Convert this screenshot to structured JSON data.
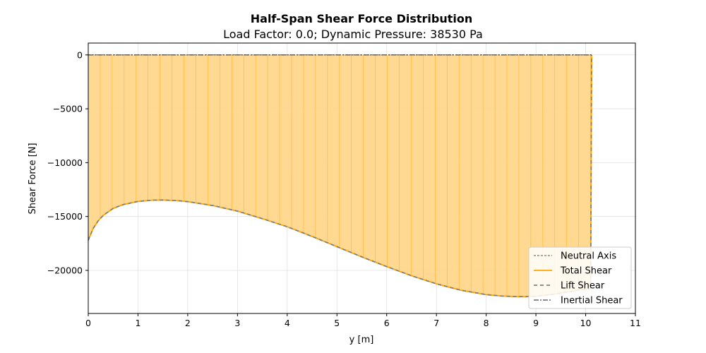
{
  "chart_data": {
    "type": "area",
    "title": "Half-Span Shear Force Distribution",
    "subtitle": "Load Factor: 0.0; Dynamic Pressure: 38530 Pa",
    "xlabel": "y [m]",
    "ylabel": "Shear Force [N]",
    "xlim": [
      0,
      11
    ],
    "ylim": [
      -24000,
      1100
    ],
    "xticks": [
      0,
      1,
      2,
      3,
      4,
      5,
      6,
      7,
      8,
      9,
      10,
      11
    ],
    "xtick_labels": [
      "0",
      "1",
      "2",
      "3",
      "4",
      "5",
      "6",
      "7",
      "8",
      "9",
      "10",
      "11"
    ],
    "yticks": [
      0,
      -5000,
      -10000,
      -15000,
      -20000
    ],
    "ytick_labels": [
      "0",
      "−5000",
      "−10000",
      "−15000",
      "−20000"
    ],
    "grid": true,
    "legend_position": "lower-right",
    "colors": {
      "total": "#ffa500",
      "fill": "#ffd78c",
      "lift": "#808080",
      "inertial": "#696969",
      "neutral": "#555555",
      "grid": "#e0e0e0"
    },
    "legend": [
      "Neutral Axis",
      "Total Shear",
      "Lift Shear",
      "Inertial Shear"
    ],
    "series": [
      {
        "name": "Total Shear",
        "x": [
          0,
          0.1,
          0.2,
          0.3,
          0.5,
          0.7,
          1.0,
          1.3,
          1.5,
          1.8,
          2.0,
          2.5,
          3.0,
          3.5,
          4.0,
          4.5,
          5.0,
          5.5,
          6.0,
          6.5,
          7.0,
          7.5,
          8.0,
          8.3,
          8.6,
          8.8,
          9.0,
          9.3,
          9.6,
          9.9,
          10.1,
          10.12
        ],
        "y": [
          -17200,
          -16100,
          -15400,
          -14900,
          -14250,
          -13900,
          -13600,
          -13480,
          -13470,
          -13530,
          -13620,
          -13980,
          -14500,
          -15200,
          -15950,
          -16850,
          -17800,
          -18750,
          -19650,
          -20500,
          -21250,
          -21850,
          -22250,
          -22380,
          -22440,
          -22440,
          -22400,
          -22250,
          -22030,
          -21800,
          -21700,
          0
        ]
      },
      {
        "name": "Lift Shear",
        "x": [
          0,
          0.1,
          0.2,
          0.3,
          0.5,
          0.7,
          1.0,
          1.3,
          1.5,
          1.8,
          2.0,
          2.5,
          3.0,
          3.5,
          4.0,
          4.5,
          5.0,
          5.5,
          6.0,
          6.5,
          7.0,
          7.5,
          8.0,
          8.3,
          8.6,
          8.8,
          9.0,
          9.3,
          9.6,
          9.9,
          10.1,
          10.12
        ],
        "y": [
          -17200,
          -16100,
          -15400,
          -14900,
          -14250,
          -13900,
          -13600,
          -13480,
          -13470,
          -13530,
          -13620,
          -13980,
          -14500,
          -15200,
          -15950,
          -16850,
          -17800,
          -18750,
          -19650,
          -20500,
          -21250,
          -21850,
          -22250,
          -22380,
          -22440,
          -22440,
          -22400,
          -22250,
          -22030,
          -21800,
          -21700,
          0
        ]
      },
      {
        "name": "Inertial Shear",
        "x": [
          0,
          10.12
        ],
        "y": [
          0,
          0
        ]
      },
      {
        "name": "Neutral Axis",
        "x": [
          0,
          10.12
        ],
        "y": [
          0,
          0
        ]
      }
    ]
  }
}
